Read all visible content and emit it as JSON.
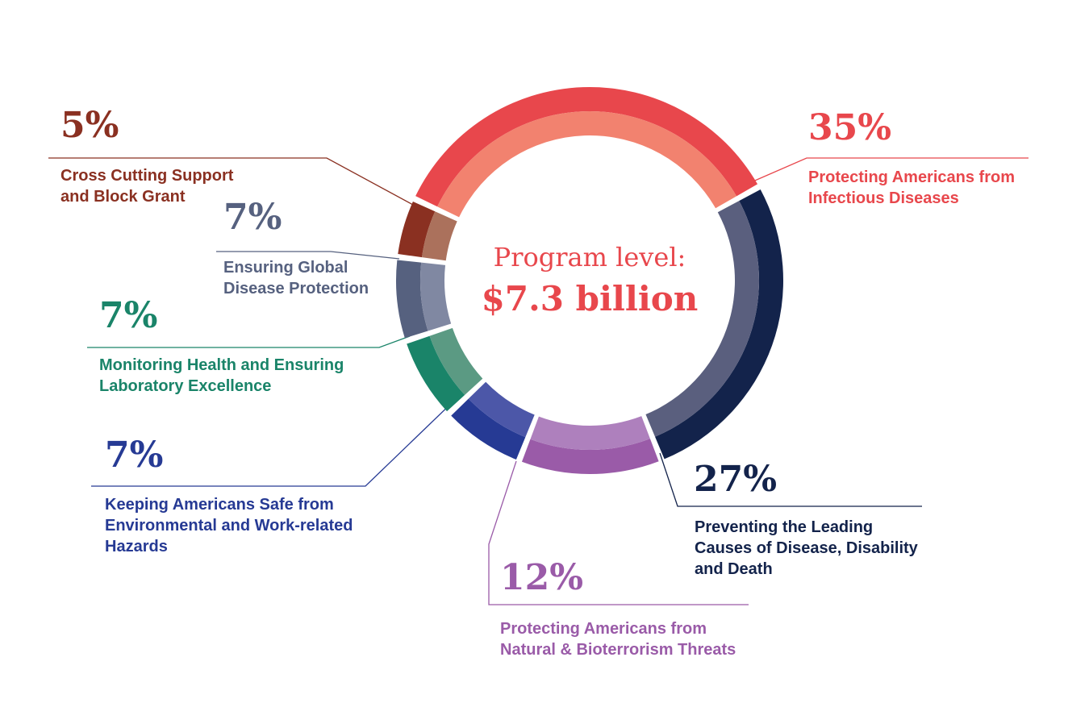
{
  "chart_data": {
    "type": "donut",
    "annotations": [
      "Program level:",
      "$7.3 billion"
    ],
    "categories": [
      "Protecting Americans from\nInfectious Diseases",
      "Preventing the Leading\nCauses of Disease, Disability\nand Death",
      "Protecting Americans from\nNatural & Bioterrorism Threats",
      "Keeping Americans Safe from\nEnvironmental and Work-related\nHazards",
      "Monitoring Health and Ensuring\nLaboratory Excellence",
      "Ensuring Global\nDisease Protection",
      "Cross Cutting Support\nand Block Grant"
    ],
    "values": [
      35,
      27,
      12,
      7,
      7,
      7,
      5
    ],
    "value_labels": [
      "35%",
      "27%",
      "12%",
      "7%",
      "7%",
      "7%",
      "5%"
    ],
    "colors": [
      "#e8474c",
      "#13234b",
      "#9a5ba8",
      "#263a94",
      "#1a8469",
      "#56617f",
      "#8a3021"
    ],
    "inner_colors": [
      "#f2826f",
      "#5a5f7e",
      "#ae80bd",
      "#4c57a8",
      "#5b9a83",
      "#8088a2",
      "#ab715c"
    ]
  }
}
